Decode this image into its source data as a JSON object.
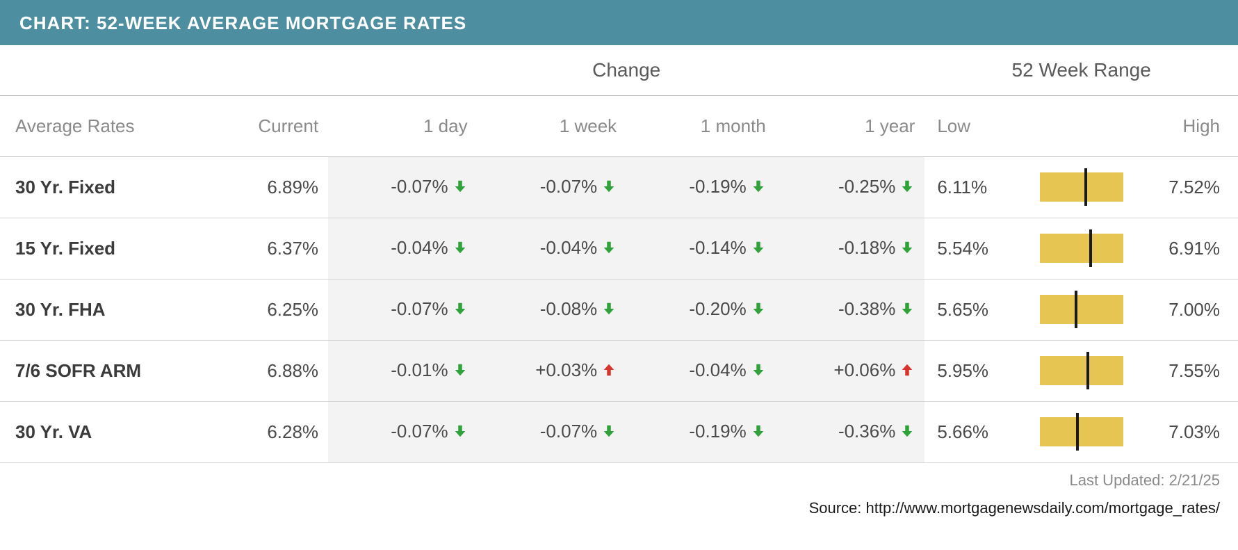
{
  "title": "CHART: 52-WEEK AVERAGE MORTGAGE RATES",
  "colors": {
    "title_bar_bg": "#4d8ea1",
    "title_bar_text": "#ffffff",
    "header_text": "#8a8a8a",
    "row_border": "#d6d6d6",
    "change_bg": "#f3f3f3",
    "range_bar_bg": "#e7c552",
    "range_tick": "#1a1a1a",
    "arrow_down": "#2fa33a",
    "arrow_up": "#d7352b"
  },
  "group_headers": {
    "change": "Change",
    "range": "52 Week Range"
  },
  "columns": {
    "name": "Average Rates",
    "current": "Current",
    "d1": "1 day",
    "w1": "1 week",
    "m1": "1 month",
    "y1": "1 year",
    "low": "Low",
    "high": "High"
  },
  "rows": [
    {
      "name": "30 Yr. Fixed",
      "current": "6.89%",
      "d1": {
        "value": "-0.07%",
        "dir": "down"
      },
      "w1": {
        "value": "-0.07%",
        "dir": "down"
      },
      "m1": {
        "value": "-0.19%",
        "dir": "down"
      },
      "y1": {
        "value": "-0.25%",
        "dir": "down"
      },
      "low": "6.11%",
      "high": "7.52%",
      "range_pos_pct": 55
    },
    {
      "name": "15 Yr. Fixed",
      "current": "6.37%",
      "d1": {
        "value": "-0.04%",
        "dir": "down"
      },
      "w1": {
        "value": "-0.04%",
        "dir": "down"
      },
      "m1": {
        "value": "-0.14%",
        "dir": "down"
      },
      "y1": {
        "value": "-0.18%",
        "dir": "down"
      },
      "low": "5.54%",
      "high": "6.91%",
      "range_pos_pct": 61
    },
    {
      "name": "30 Yr. FHA",
      "current": "6.25%",
      "d1": {
        "value": "-0.07%",
        "dir": "down"
      },
      "w1": {
        "value": "-0.08%",
        "dir": "down"
      },
      "m1": {
        "value": "-0.20%",
        "dir": "down"
      },
      "y1": {
        "value": "-0.38%",
        "dir": "down"
      },
      "low": "5.65%",
      "high": "7.00%",
      "range_pos_pct": 44
    },
    {
      "name": "7/6 SOFR ARM",
      "current": "6.88%",
      "d1": {
        "value": "-0.01%",
        "dir": "down"
      },
      "w1": {
        "value": "+0.03%",
        "dir": "up"
      },
      "m1": {
        "value": "-0.04%",
        "dir": "down"
      },
      "y1": {
        "value": "+0.06%",
        "dir": "up"
      },
      "low": "5.95%",
      "high": "7.55%",
      "range_pos_pct": 58
    },
    {
      "name": "30 Yr. VA",
      "current": "6.28%",
      "d1": {
        "value": "-0.07%",
        "dir": "down"
      },
      "w1": {
        "value": "-0.07%",
        "dir": "down"
      },
      "m1": {
        "value": "-0.19%",
        "dir": "down"
      },
      "y1": {
        "value": "-0.36%",
        "dir": "down"
      },
      "low": "5.66%",
      "high": "7.03%",
      "range_pos_pct": 45
    }
  ],
  "last_updated_label": "Last Updated: ",
  "last_updated_value": "2/21/25",
  "source_label": "Source: ",
  "source_value": "http://www.mortgagenewsdaily.com/mortgage_rates/"
}
